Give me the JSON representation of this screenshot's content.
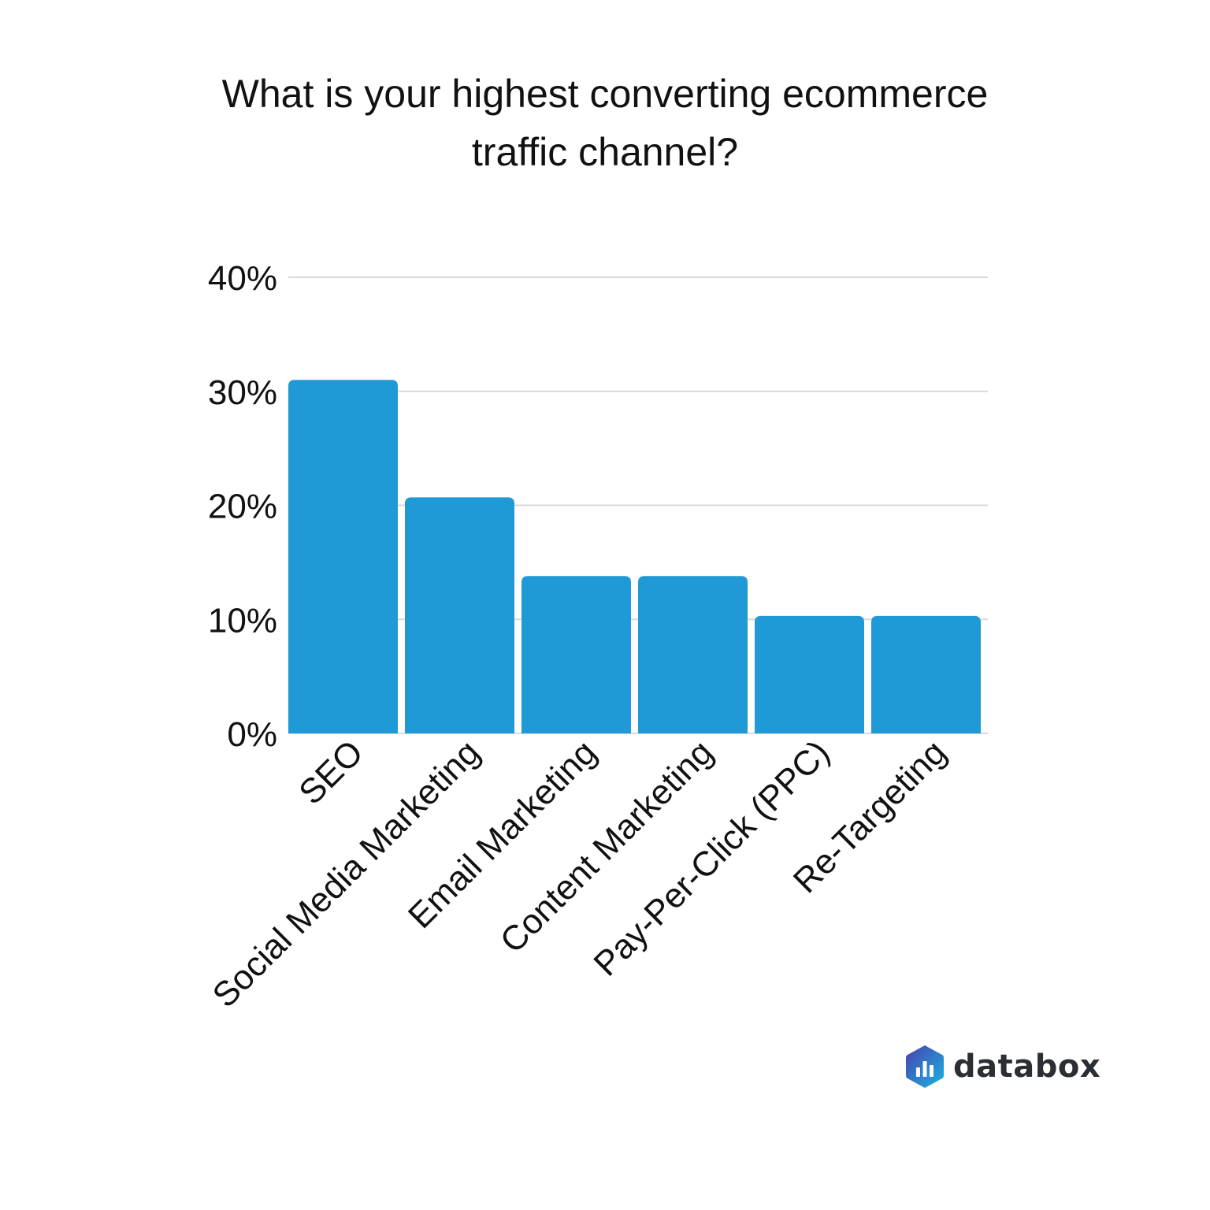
{
  "chart_data": {
    "type": "bar",
    "title_lines": [
      "What is your highest converting ecommerce",
      "traffic channel?"
    ],
    "categories": [
      "SEO",
      "Social Media Marketing",
      "Email Marketing",
      "Content Marketing",
      "Pay-Per-Click (PPC)",
      "Re-Targeting"
    ],
    "values": [
      31.0,
      20.7,
      13.8,
      13.8,
      10.3,
      10.3
    ],
    "unit": "%",
    "ylim": [
      0,
      40
    ],
    "yticks": [
      0,
      10,
      20,
      30,
      40
    ],
    "ytick_labels": [
      "0%",
      "10%",
      "20%",
      "30%",
      "40%"
    ],
    "xlabel": "",
    "ylabel": "",
    "grid": true,
    "bar_color": "#1f9ad6",
    "grid_color": "#d9d9d9"
  },
  "branding": {
    "logo_text": "databox",
    "logo_icon": "databox-hexagon-bars-icon"
  }
}
